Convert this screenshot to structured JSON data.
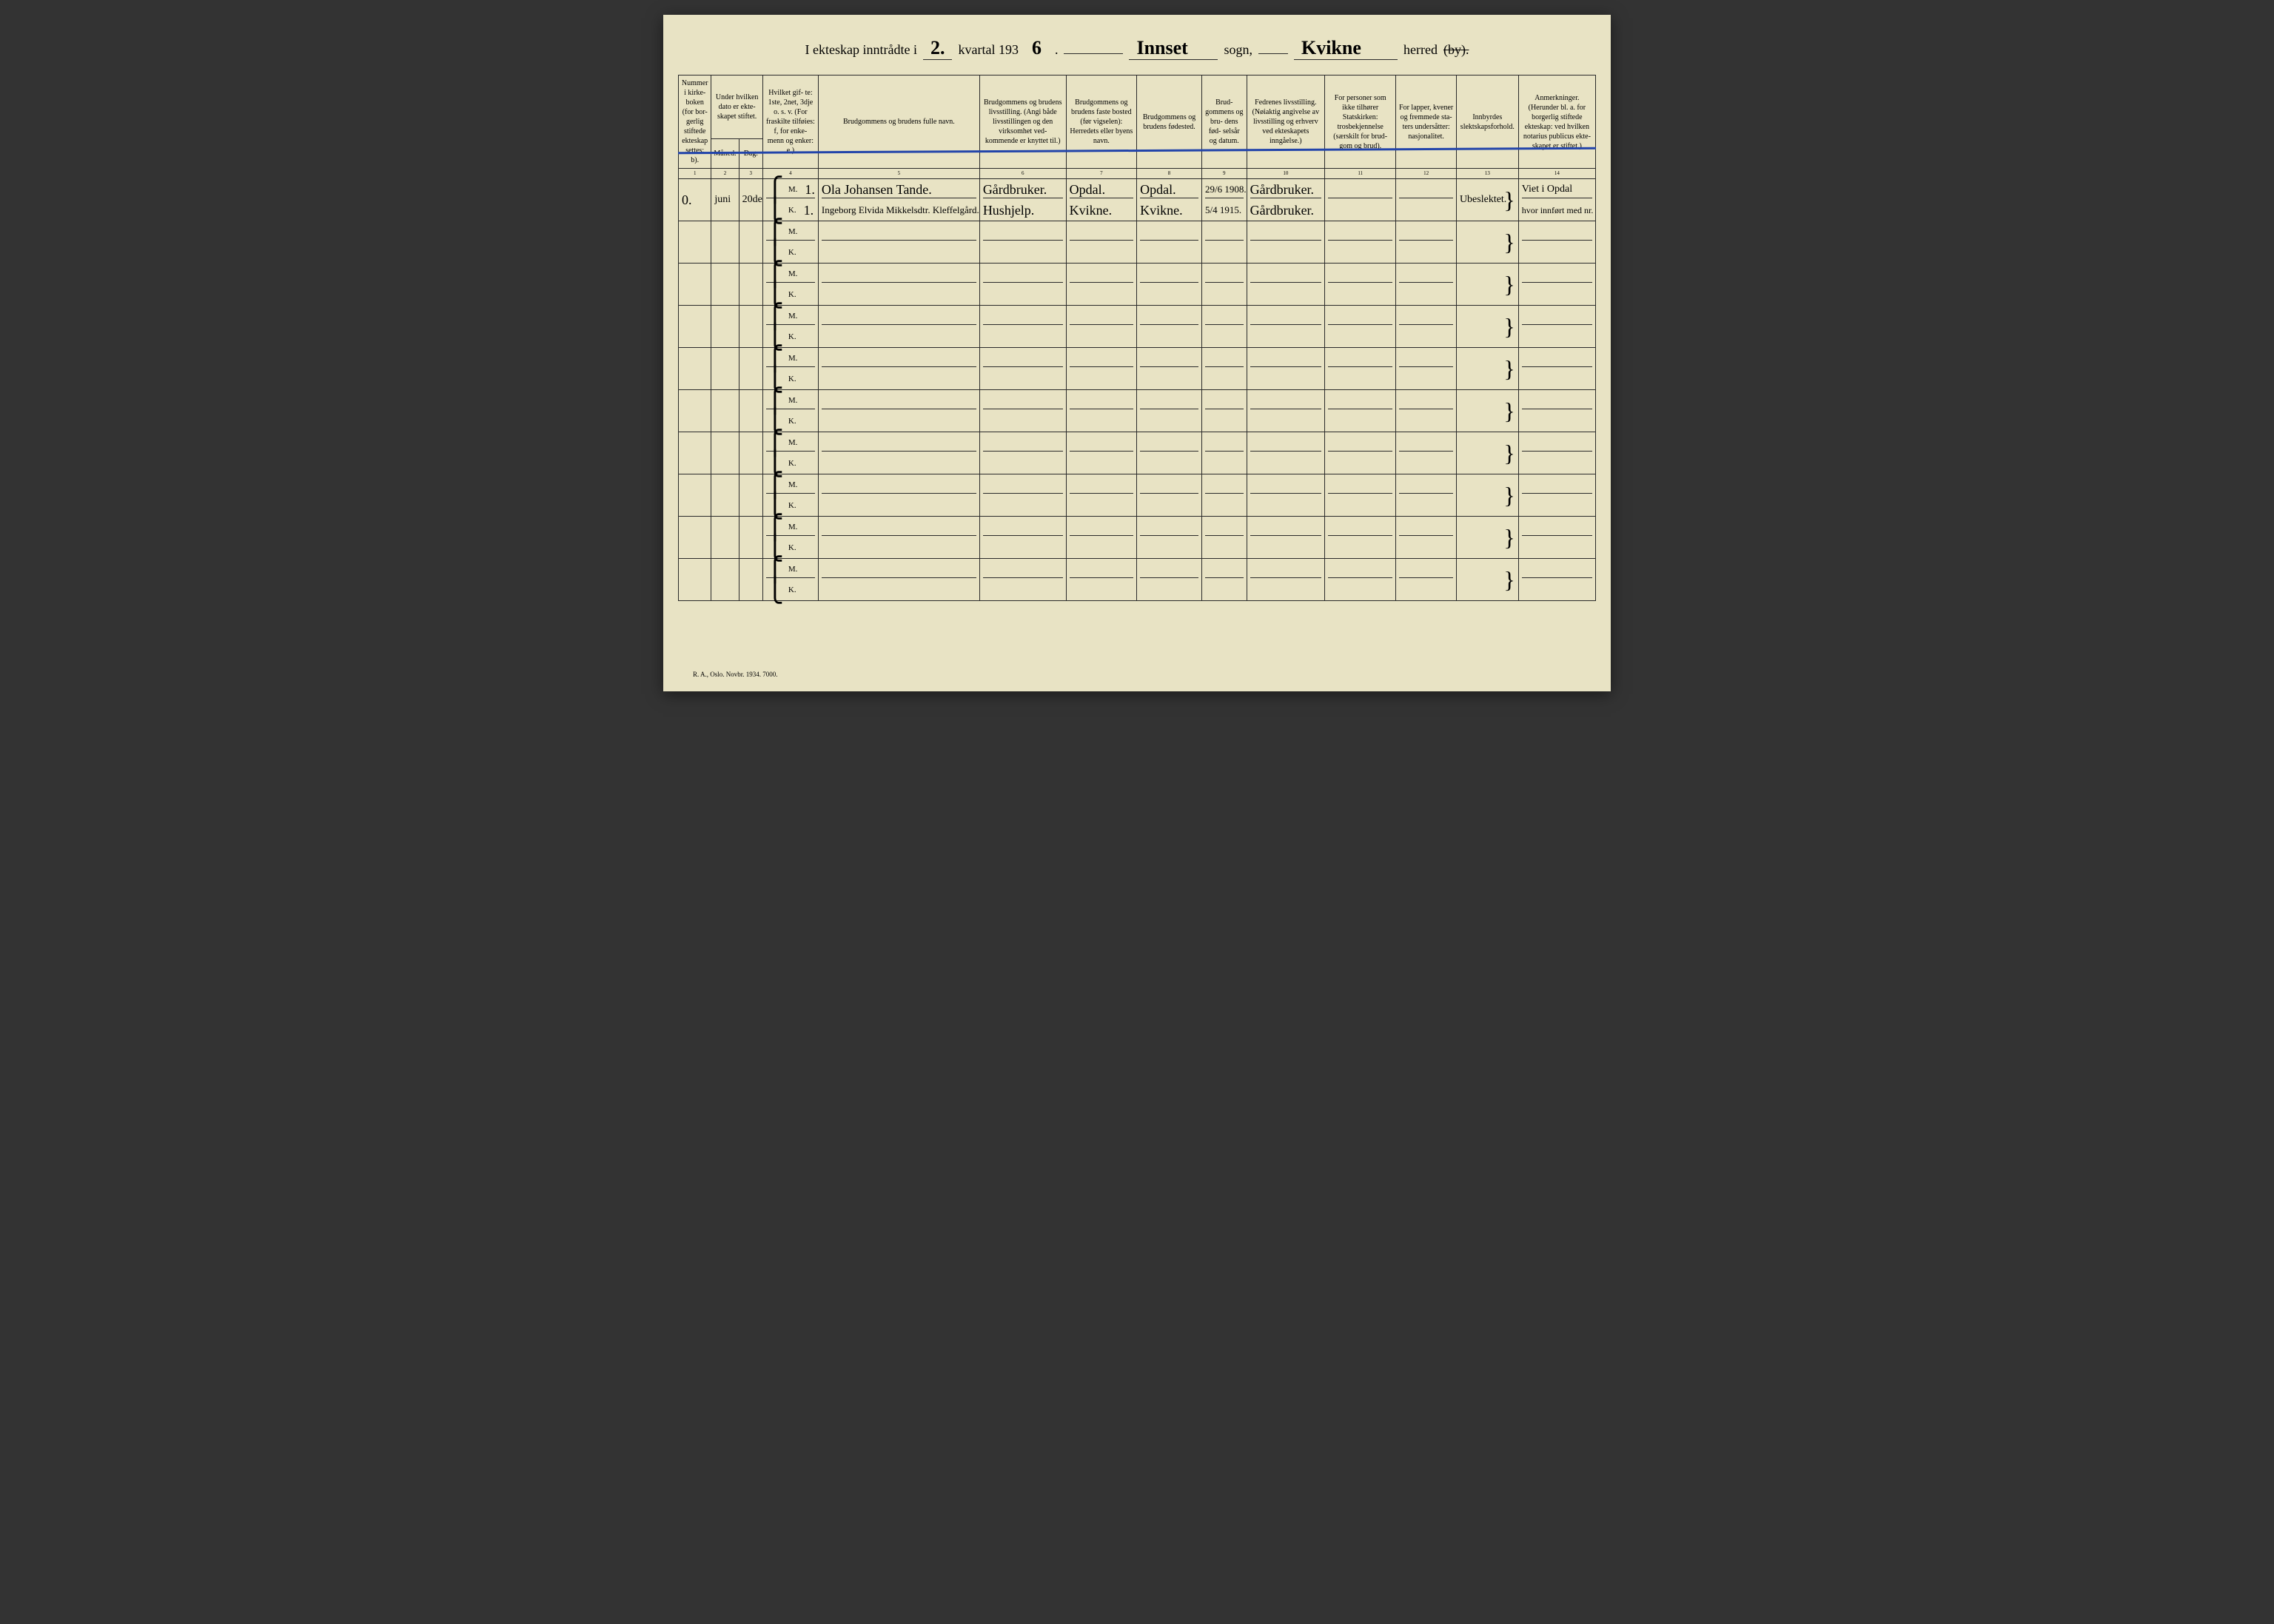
{
  "title": {
    "prefix": "I ekteskap inntrådte i",
    "quarter_hand": "2.",
    "middle1": "kvartal 193",
    "year_hand": "6",
    "period": ".",
    "sogn_hand": "Innset",
    "sogn_label": "sogn,",
    "herred_hand": "Kvikne",
    "herred_label": "herred",
    "by_struck": "(by)."
  },
  "headers": {
    "c1": "Nummer i kirke- boken (for bor- gerlig stiftede ekteskap settes: b).",
    "c2_group": "Under hvilken dato er ekte- skapet stiftet.",
    "c2": "Måned.",
    "c3": "Dag.",
    "c4": "Hvilket gif- te: 1ste, 2net, 3dje o. s. v. (For fraskilte tilføies: f, for enke- menn og enker: e.)",
    "c5": "Brudgommens og brudens fulle navn.",
    "c6": "Brudgommens og brudens livsstilling. (Angi både livsstillingen og den virksomhet ved- kommende er knyttet til.)",
    "c7": "Brudgommens og brudens faste bosted (før vigselen): Herredets eller byens navn.",
    "c8": "Brudgommens og brudens fødested.",
    "c9": "Brud- gommens og bru- dens fød- selsår og datum.",
    "c10": "Fedrenes livsstilling. (Nøiaktig angivelse av livsstilling og erhverv ved ekteskapets inngåelse.)",
    "c11": "For personer som ikke tilhører Statskirken: trosbekjennelse (særskilt for brud- gom og brud).",
    "c12": "For lapper, kvener og fremmede sta- ters undersåtter: nasjonalitet.",
    "c13": "Innbyrdes slektskapsforhold.",
    "c14": "Anmerkninger. (Herunder bl. a. for borgerlig stiftede ekteskap: ved hvilken notarius publicus ekte- skapet er stiftet.)"
  },
  "colnums": [
    "1",
    "2",
    "3",
    "4",
    "5",
    "6",
    "7",
    "8",
    "9",
    "10",
    "11",
    "12",
    "13",
    "14"
  ],
  "entry": {
    "number": "0.",
    "month": "juni",
    "day": "20de",
    "groom": {
      "mk": "M.",
      "gifte": "1.",
      "name": "Ola Johansen Tande.",
      "occupation": "Gårdbruker.",
      "residence": "Opdal.",
      "birthplace": "Opdal.",
      "birthdate": "29/6 1908.",
      "father": "Gårdbruker."
    },
    "bride": {
      "mk": "K.",
      "gifte": "1.",
      "name": "Ingeborg Elvida Mikkelsdtr. Kleffelgård.",
      "occupation": "Hushjelp.",
      "residence": "Kvikne.",
      "birthplace": "Kvikne.",
      "birthdate": "5/4 1915.",
      "father": "Gårdbruker."
    },
    "kinship": "Ubeslektet.",
    "remarks_line1": "Viet i Opdal",
    "remarks_line2": "hvor innført med nr."
  },
  "mk": {
    "m": "M.",
    "k": "K."
  },
  "footer": "R. A., Oslo. Novbr. 1934. 7000.",
  "styling": {
    "page_bg": "#e8e3c4",
    "border_color": "#2a2a2a",
    "blue_line": "#2244aa",
    "header_fontsize": 10,
    "title_fontsize": 18,
    "handwriting_fontsize": 18
  }
}
